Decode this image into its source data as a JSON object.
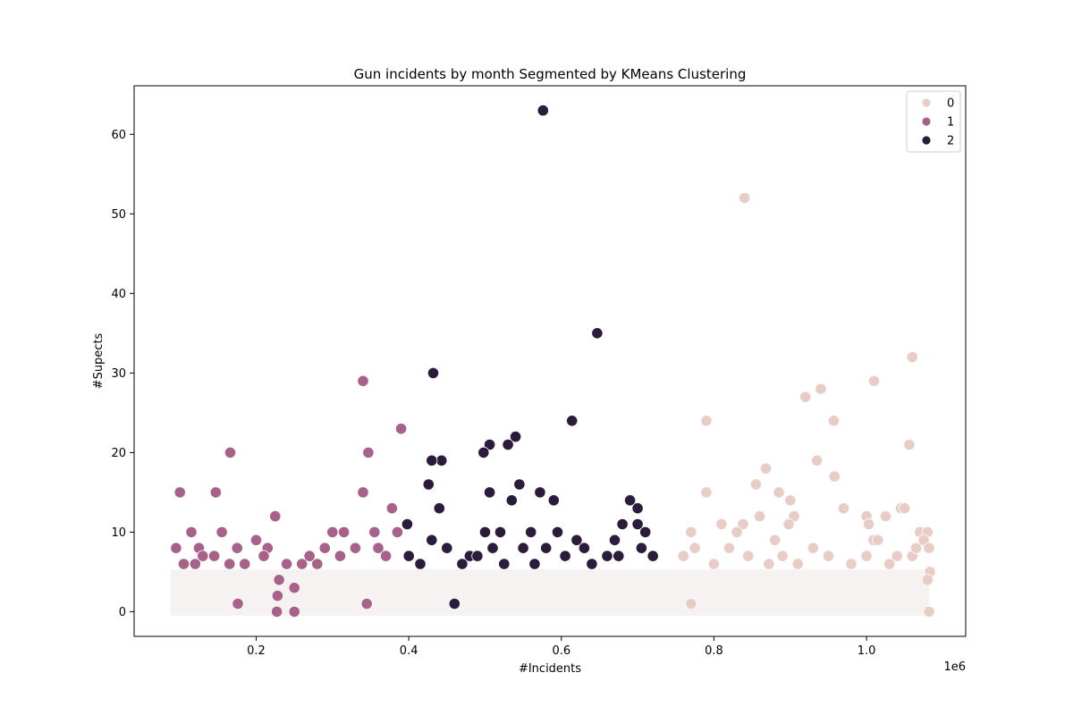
{
  "chart_data": {
    "type": "scatter",
    "title": "Gun incidents by month Segmented by KMeans Clustering",
    "xlabel": "#Incidents",
    "ylabel": "#Supects",
    "x_offset_text": "1e6",
    "x_scale_factor": 1000000,
    "xlim": [
      40000,
      1130000
    ],
    "ylim": [
      -3.1,
      66.1
    ],
    "x_ticks": [
      0.2,
      0.4,
      0.6,
      0.8,
      1.0
    ],
    "x_tick_labels": [
      "0.2",
      "0.4",
      "0.6",
      "0.8",
      "1.0"
    ],
    "y_ticks": [
      0,
      10,
      20,
      30,
      40,
      50,
      60
    ],
    "y_tick_labels": [
      "0",
      "10",
      "20",
      "30",
      "40",
      "50",
      "60"
    ],
    "grid": false,
    "legend_position": "top-right",
    "legend": {
      "title": "",
      "entries": [
        {
          "label": "0",
          "color": "#e8cdc6"
        },
        {
          "label": "1",
          "color": "#a8628a"
        },
        {
          "label": "2",
          "color": "#2b1c3c"
        }
      ]
    },
    "series": [
      {
        "label": "0",
        "color": "#e8cdc6",
        "x": [
          840000,
          1060000,
          1010000,
          940000,
          920000,
          790000,
          957000,
          1056000,
          935000,
          958000,
          790000,
          868000,
          970000,
          855000,
          885000,
          900000,
          1045000,
          1050000,
          1070000,
          1080000,
          1025000,
          1000000,
          1003000,
          1009000,
          810000,
          1015000,
          905000,
          880000,
          898000,
          838000,
          860000,
          830000,
          770000,
          1075000,
          1060000,
          1082000,
          1083000,
          1080000,
          760000,
          775000,
          800000,
          820000,
          845000,
          872000,
          890000,
          910000,
          930000,
          950000,
          980000,
          1000000,
          1030000,
          1040000,
          1065000,
          770000,
          1082000
        ],
        "y": [
          52,
          32,
          29,
          28,
          27,
          24,
          24,
          21,
          19,
          17,
          15,
          18,
          13,
          16,
          15,
          14,
          13,
          13,
          10,
          10,
          12,
          12,
          11,
          9,
          11,
          9,
          12,
          9,
          11,
          11,
          12,
          10,
          10,
          9,
          7,
          8,
          5,
          4,
          7,
          8,
          6,
          8,
          7,
          6,
          7,
          6,
          8,
          7,
          6,
          7,
          6,
          7,
          8,
          1,
          0
        ]
      },
      {
        "label": "1",
        "color": "#a8628a",
        "x": [
          100000,
          147000,
          166000,
          225000,
          340000,
          347000,
          390000,
          340000,
          378000,
          95000,
          115000,
          125000,
          155000,
          200000,
          215000,
          290000,
          300000,
          315000,
          330000,
          355000,
          385000,
          130000,
          175000,
          240000,
          270000,
          105000,
          145000,
          185000,
          210000,
          260000,
          280000,
          310000,
          360000,
          370000,
          120000,
          165000,
          230000,
          228000,
          227000,
          250000,
          250000,
          176000,
          345000
        ],
        "y": [
          15,
          15,
          20,
          12,
          29,
          20,
          23,
          15,
          13,
          8,
          10,
          8,
          10,
          9,
          8,
          8,
          10,
          10,
          8,
          10,
          10,
          7,
          8,
          6,
          7,
          6,
          7,
          6,
          7,
          6,
          6,
          7,
          8,
          7,
          6,
          6,
          4,
          2,
          0,
          3,
          0,
          1,
          1
        ]
      },
      {
        "label": "2",
        "color": "#2b1c3c",
        "x": [
          576000,
          647000,
          432000,
          614000,
          540000,
          506000,
          530000,
          498000,
          443000,
          430000,
          426000,
          506000,
          545000,
          572000,
          590000,
          535000,
          690000,
          700000,
          700000,
          680000,
          670000,
          440000,
          398000,
          500000,
          520000,
          560000,
          595000,
          620000,
          710000,
          430000,
          450000,
          480000,
          510000,
          550000,
          580000,
          630000,
          660000,
          720000,
          460000,
          400000,
          415000,
          470000,
          490000,
          525000,
          565000,
          605000,
          640000,
          675000,
          705000
        ],
        "y": [
          63,
          35,
          30,
          24,
          22,
          21,
          21,
          20,
          19,
          19,
          16,
          15,
          16,
          15,
          14,
          14,
          14,
          13,
          11,
          11,
          9,
          13,
          11,
          10,
          10,
          10,
          10,
          9,
          10,
          9,
          8,
          7,
          8,
          8,
          8,
          8,
          7,
          7,
          1,
          7,
          6,
          6,
          7,
          6,
          6,
          7,
          6,
          7,
          8
        ]
      }
    ]
  }
}
